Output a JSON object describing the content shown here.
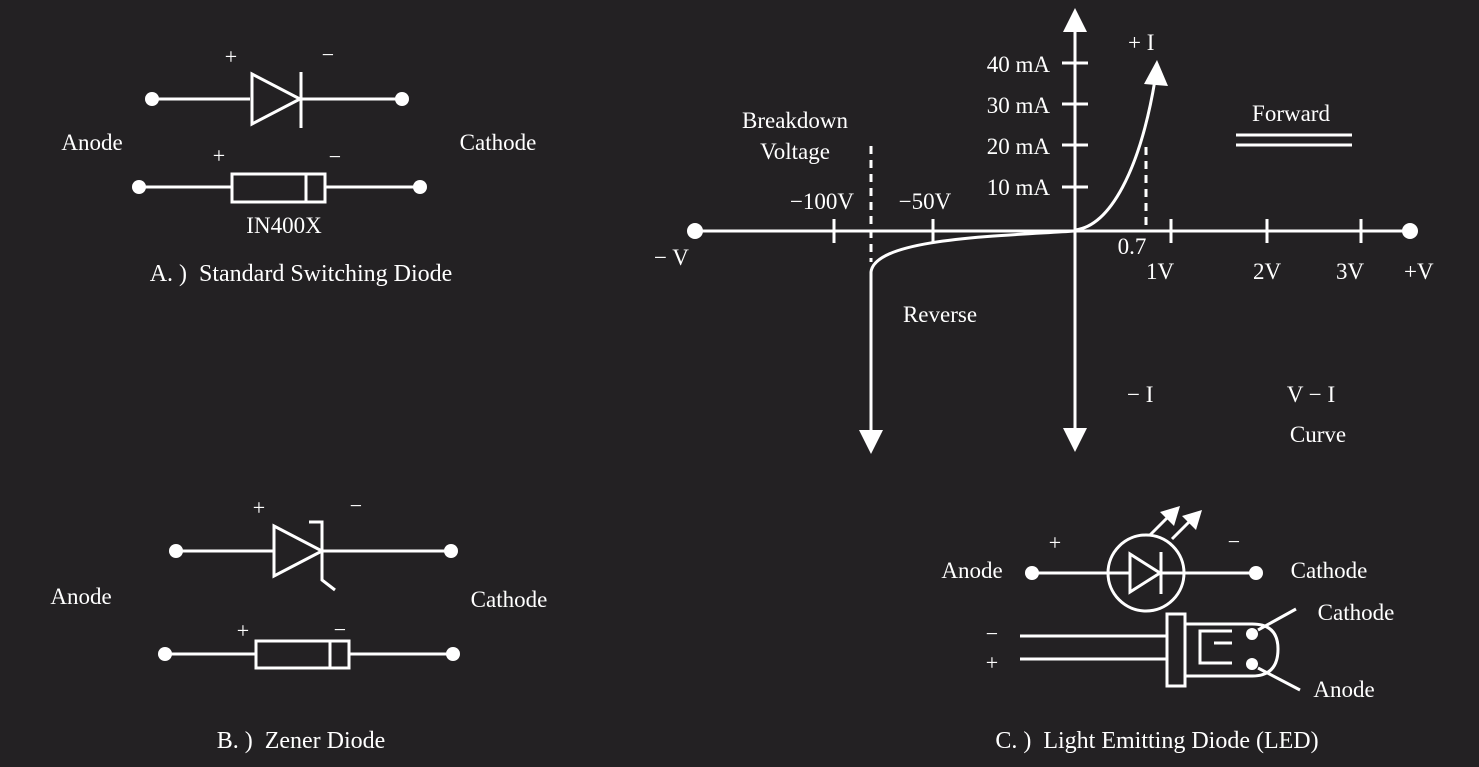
{
  "colors": {
    "background": "#232123",
    "foreground": "#ffffff"
  },
  "diode_a": {
    "caption": "A. )  Standard Switching Diode",
    "anode_label": "Anode",
    "cathode_label": "Cathode",
    "plus": "+",
    "minus": "−",
    "part_number": "IN400X"
  },
  "diode_b": {
    "caption": "B. )  Zener Diode",
    "anode_label": "Anode",
    "cathode_label": "Cathode",
    "plus": "+",
    "minus": "−"
  },
  "diode_c": {
    "caption": "C. )  Light Emitting Diode (LED)",
    "anode_label": "Anode",
    "cathode_label": "Cathode",
    "plus": "+",
    "minus": "−",
    "pin_cathode": "Cathode",
    "pin_anode": "Anode"
  },
  "vi_curve": {
    "pos_current": "+ I",
    "neg_current": "− I",
    "neg_voltage": "− V",
    "pos_voltage": "+V",
    "current_ticks": [
      "40 mA",
      "30 mA",
      "20 mA",
      "10 mA"
    ],
    "voltage_ticks_pos": [
      "1V",
      "2V",
      "3V"
    ],
    "voltage_ticks_neg": [
      "−100V",
      "−50V"
    ],
    "threshold_label": "0.7",
    "breakdown_line1": "Breakdown",
    "breakdown_line2": "Voltage",
    "forward_label": "Forward",
    "reverse_label": "Reverse",
    "title_line1": "V − I",
    "title_line2": "Curve"
  }
}
